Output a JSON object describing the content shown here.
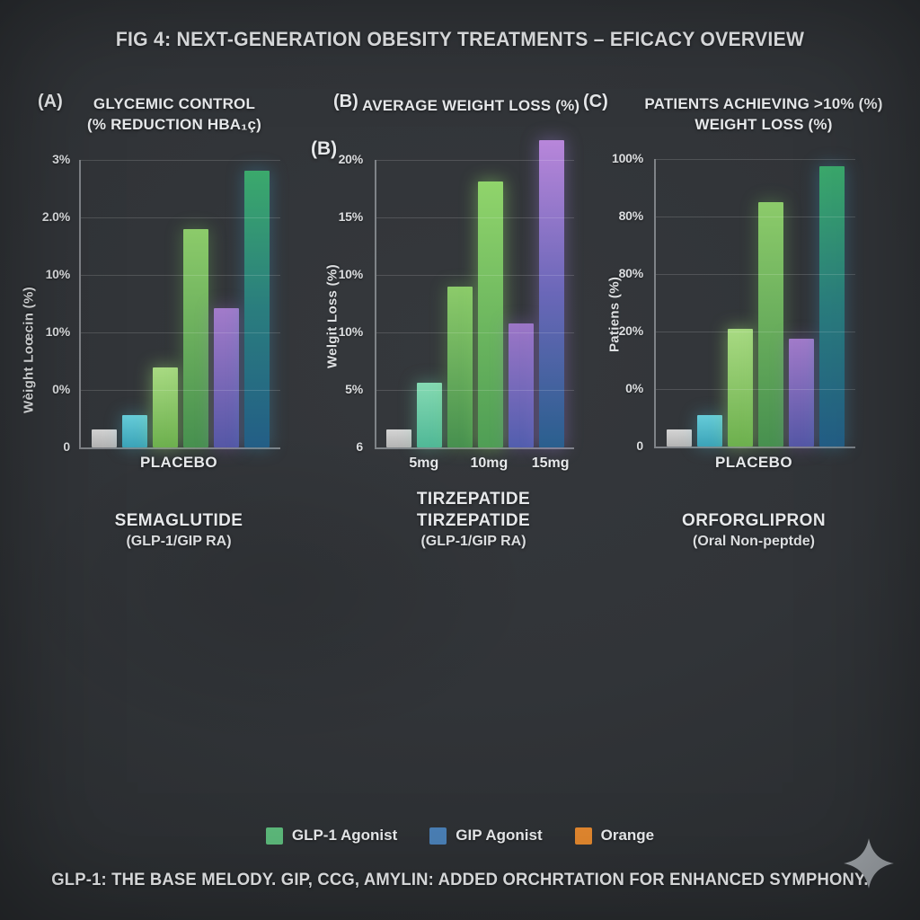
{
  "figure": {
    "title": "FIG 4: NEXT-GENERATION OBESITY TREATMENTS – EFICACY OVERVIEW",
    "footnote": "GLP-1: THE BASE MELODY. GIP, CCG, AMYLIN: ADDED ORCHRTATION FOR ENHANCED SYMPHONY."
  },
  "legend": {
    "items": [
      {
        "label": "GLP-1 Agonist",
        "color": "#5cb87a"
      },
      {
        "label": "GIP Agonist",
        "color": "#4a7fb5"
      },
      {
        "label": "Orange",
        "color": "#e0862e"
      }
    ]
  },
  "watermark": {
    "icon": "sparkle-icon",
    "color": "#9ba0a5"
  },
  "bar_palette": {
    "gray": {
      "stops": [
        "#d4d4d4",
        "#b4b4b4"
      ],
      "glow": ""
    },
    "cyan": {
      "stops": [
        "#66ccd9",
        "#3ba3b8"
      ],
      "glow": "rgba(80,190,210,0.30)"
    },
    "lightgreen": {
      "stops": [
        "#a8da82",
        "#6db04e"
      ],
      "glow": "rgba(150,215,115,0.45)"
    },
    "green": {
      "stops": [
        "#8ccb6a",
        "#47904f"
      ],
      "glow": "rgba(120,195,95,0.30)"
    },
    "purple": {
      "stops": [
        "#a27bca",
        "#5557a6"
      ],
      "glow": "rgba(150,110,200,0.35)"
    },
    "tealgreen": {
      "stops": [
        "#3ba96c",
        "#2a7d7e",
        "#235e86"
      ],
      "glow": "rgba(60,150,190,0.35)"
    },
    "mint": {
      "stops": [
        "#85dab3",
        "#50b897"
      ],
      "glow": "rgba(110,210,170,0.35)"
    },
    "brightgreen": {
      "stops": [
        "#90d46b",
        "#4f9e55"
      ],
      "glow": "rgba(140,215,105,0.45)"
    },
    "indigo": {
      "stops": [
        "#9c76c7",
        "#525eae"
      ],
      "glow": "rgba(140,110,200,0.35)"
    },
    "violetblue": {
      "stops": [
        "#b886da",
        "#6a67b8",
        "#2a5f8e"
      ],
      "glow": "rgba(150,120,210,0.40)"
    }
  },
  "chart_data": [
    {
      "type": "bar",
      "panel_label": "(A)",
      "title": "GLYCEMIC CONTROL",
      "title_line2": "(% REDUCTION HBA₁ç)",
      "ylabel": "Wèight Loœcin (%)",
      "ylim": [
        0,
        3
      ],
      "grid": true,
      "ytick_labels": [
        "3%",
        "2.0%",
        "10%",
        "10%",
        "0%",
        "0"
      ],
      "xtick_labels": [
        "PLACEBO"
      ],
      "caption_lines": [
        "SEMAGLUTIDE",
        "(GLP-1/GIP RA)"
      ],
      "bars": [
        {
          "name": "placebo",
          "value": 0.19,
          "color": "gray"
        },
        {
          "name": "cyan",
          "value": 0.34,
          "color": "cyan"
        },
        {
          "name": "light-green",
          "value": 0.83,
          "color": "lightgreen"
        },
        {
          "name": "green",
          "value": 2.28,
          "color": "green"
        },
        {
          "name": "purple",
          "value": 1.45,
          "color": "purple"
        },
        {
          "name": "teal",
          "value": 2.89,
          "color": "tealgreen"
        }
      ]
    },
    {
      "type": "bar",
      "panel_label": "(B)",
      "inner_label": "(B)",
      "title": "AVERAGE WEIGHT LOSS (%)",
      "ylabel": "Welgit Loss (%)",
      "ylim": [
        0,
        20
      ],
      "grid": true,
      "ytick_labels": [
        "20%",
        "15%",
        "10%",
        "10%",
        "5%",
        "6"
      ],
      "xtick_labels": [
        "5mg",
        "10mg",
        "15mg"
      ],
      "xtick_pos": [
        0.24,
        0.57,
        0.88
      ],
      "caption_lines": [
        "TIRZEPATIDE",
        "TIRZEPATIDE",
        "(GLP-1/GIP RA)"
      ],
      "bars": [
        {
          "name": "placebo",
          "value": 1.25,
          "color": "gray"
        },
        {
          "name": "mint",
          "value": 4.5,
          "color": "mint"
        },
        {
          "name": "green",
          "value": 11.2,
          "color": "green"
        },
        {
          "name": "bright-green",
          "value": 18.5,
          "color": "brightgreen"
        },
        {
          "name": "indigo",
          "value": 8.6,
          "color": "indigo"
        },
        {
          "name": "violet-blue",
          "value": 21.4,
          "color": "violetblue"
        }
      ]
    },
    {
      "type": "bar",
      "panel_label": "(C)",
      "title": "PATIENTS ACHIEVING >10% (%)",
      "title_line2": "WEIGHT LOSS (%)",
      "ylabel": "Patiens (%)",
      "ylim": [
        0,
        100
      ],
      "grid": true,
      "ytick_labels": [
        "100%",
        "80%",
        "80%",
        "20%",
        "0%",
        "0"
      ],
      "xtick_labels": [
        "PLACEBO"
      ],
      "caption_lines": [
        "ORFORGLIPRON",
        "(Oral Non-peptde)"
      ],
      "bars": [
        {
          "name": "placebo",
          "value": 6,
          "color": "gray"
        },
        {
          "name": "cyan",
          "value": 11,
          "color": "cyan"
        },
        {
          "name": "light-green",
          "value": 41,
          "color": "lightgreen"
        },
        {
          "name": "green",
          "value": 85,
          "color": "green"
        },
        {
          "name": "purple",
          "value": 37.5,
          "color": "purple"
        },
        {
          "name": "teal",
          "value": 97.5,
          "color": "tealgreen"
        }
      ]
    }
  ]
}
